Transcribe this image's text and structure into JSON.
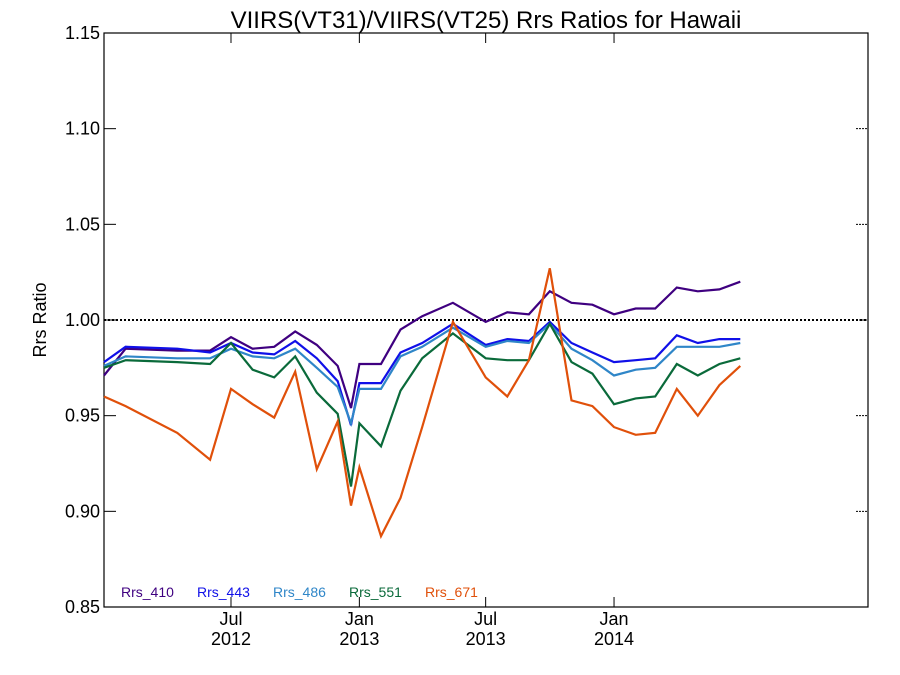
{
  "chart_data": {
    "type": "line",
    "title": "VIIRS(VT31)/VIIRS(VT25)  Rrs Ratios for Hawaii",
    "xlabel": "",
    "ylabel": "Rrs Ratio",
    "xlim": [
      "2012-01-01",
      "2014-12-31"
    ],
    "ylim": [
      0.85,
      1.15
    ],
    "yticks": [
      0.85,
      0.9,
      0.95,
      1.0,
      1.05,
      1.1,
      1.15
    ],
    "ytick_labels": [
      "0.85",
      "0.90",
      "0.95",
      "1.00",
      "1.05",
      "1.10",
      "1.15"
    ],
    "xticks": [
      {
        "date": "2012-07-01",
        "label": "Jul",
        "sublabel": "2012"
      },
      {
        "date": "2013-01-01",
        "label": "Jan",
        "sublabel": "2013"
      },
      {
        "date": "2013-07-01",
        "label": "Jul",
        "sublabel": "2013"
      },
      {
        "date": "2014-01-01",
        "label": "Jan",
        "sublabel": "2014"
      }
    ],
    "reference_line": 1.0,
    "grid": false,
    "legend_position": "bottom-left",
    "x": [
      "2012-01-01",
      "2012-02-01",
      "2012-04-15",
      "2012-06-01",
      "2012-07-01",
      "2012-08-01",
      "2012-09-01",
      "2012-10-01",
      "2012-11-01",
      "2012-12-01",
      "2012-12-20",
      "2013-01-01",
      "2013-02-01",
      "2013-03-01",
      "2013-04-01",
      "2013-05-15",
      "2013-07-01",
      "2013-08-01",
      "2013-09-01",
      "2013-10-01",
      "2013-11-01",
      "2013-12-01",
      "2014-01-01",
      "2014-02-01",
      "2014-03-01",
      "2014-04-01",
      "2014-05-01",
      "2014-06-01",
      "2014-07-01"
    ],
    "series": [
      {
        "name": "Rrs_410",
        "color": "#3f0080",
        "values": [
          0.971,
          0.985,
          0.984,
          0.984,
          0.991,
          0.985,
          0.986,
          0.994,
          0.987,
          0.976,
          0.954,
          0.977,
          0.977,
          0.995,
          1.002,
          1.009,
          0.999,
          1.004,
          1.003,
          1.015,
          1.009,
          1.008,
          1.003,
          1.006,
          1.006,
          1.017,
          1.015,
          1.016,
          1.02
        ]
      },
      {
        "name": "Rrs_443",
        "color": "#1010e8",
        "values": [
          0.978,
          0.986,
          0.985,
          0.983,
          0.988,
          0.983,
          0.982,
          0.989,
          0.98,
          0.968,
          0.945,
          0.967,
          0.967,
          0.983,
          0.988,
          0.998,
          0.987,
          0.99,
          0.989,
          0.999,
          0.988,
          0.983,
          0.978,
          0.979,
          0.98,
          0.992,
          0.988,
          0.99,
          0.99
        ]
      },
      {
        "name": "Rrs_486",
        "color": "#2f86c8",
        "values": [
          0.976,
          0.981,
          0.98,
          0.98,
          0.985,
          0.981,
          0.98,
          0.985,
          0.975,
          0.965,
          0.946,
          0.964,
          0.964,
          0.981,
          0.986,
          0.996,
          0.986,
          0.989,
          0.988,
          0.998,
          0.985,
          0.979,
          0.971,
          0.974,
          0.975,
          0.986,
          0.986,
          0.986,
          0.988
        ]
      },
      {
        "name": "Rrs_551",
        "color": "#0a6a3a",
        "values": [
          0.975,
          0.979,
          0.978,
          0.977,
          0.988,
          0.974,
          0.97,
          0.981,
          0.962,
          0.951,
          0.913,
          0.946,
          0.934,
          0.963,
          0.98,
          0.993,
          0.98,
          0.979,
          0.979,
          0.998,
          0.978,
          0.972,
          0.956,
          0.959,
          0.96,
          0.977,
          0.971,
          0.977,
          0.98
        ]
      },
      {
        "name": "Rrs_671",
        "color": "#e0500a",
        "values": [
          0.96,
          0.955,
          0.941,
          0.927,
          0.964,
          0.956,
          0.949,
          0.973,
          0.922,
          0.947,
          0.903,
          0.923,
          0.887,
          0.907,
          0.944,
          0.999,
          0.97,
          0.96,
          0.979,
          1.027,
          0.958,
          0.955,
          0.944,
          0.94,
          0.941,
          0.964,
          0.95,
          0.966,
          0.976
        ]
      }
    ]
  }
}
